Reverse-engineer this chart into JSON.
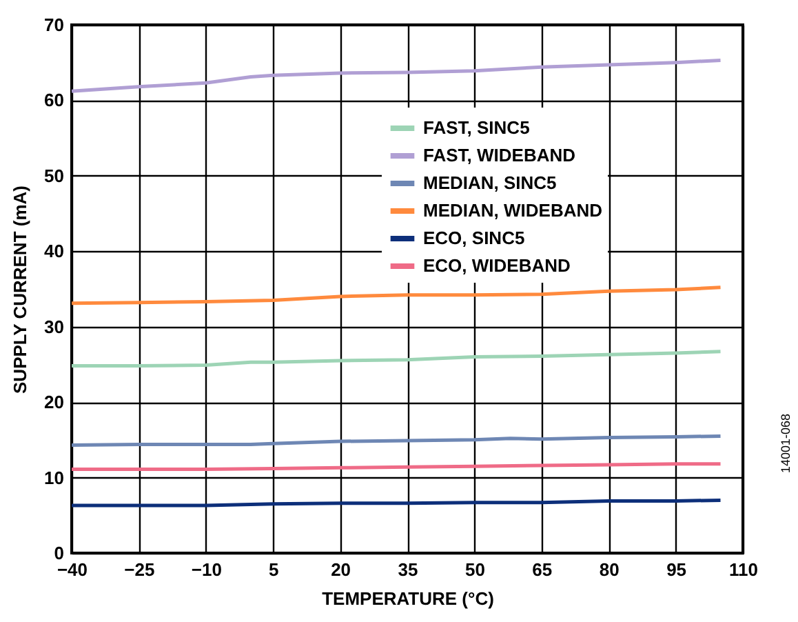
{
  "chart_data": {
    "type": "line",
    "xlabel": "TEMPERATURE (°C)",
    "ylabel": "SUPPLY CURRENT (mA)",
    "xlim": [
      -40,
      110
    ],
    "xticks": [
      -40,
      -25,
      -10,
      5,
      20,
      35,
      50,
      65,
      80,
      95,
      110
    ],
    "ylim": [
      0,
      70
    ],
    "yticks": [
      0,
      10,
      20,
      30,
      40,
      50,
      60,
      70
    ],
    "grid": true,
    "legend": "top right",
    "line_style": "solid",
    "marker": "none",
    "annotations": [
      "14001-068"
    ],
    "series": [
      {
        "name": "FAST, SINC5",
        "color": "#9dd4b5",
        "x": [
          -40,
          -25,
          -10,
          0,
          5,
          20,
          35,
          50,
          65,
          80,
          95,
          105
        ],
        "values": [
          24.8,
          24.8,
          24.9,
          25.3,
          25.3,
          25.5,
          25.6,
          26.0,
          26.1,
          26.3,
          26.5,
          26.7
        ]
      },
      {
        "name": "FAST, WIDEBAND",
        "color": "#b09fd4",
        "x": [
          -40,
          -25,
          -10,
          0,
          5,
          20,
          35,
          50,
          65,
          80,
          95,
          105
        ],
        "values": [
          61.2,
          61.8,
          62.3,
          63.1,
          63.3,
          63.6,
          63.7,
          63.9,
          64.4,
          64.7,
          65.0,
          65.3
        ]
      },
      {
        "name": "MEDIAN, SINC5",
        "color": "#6e87b4",
        "x": [
          -40,
          -25,
          -10,
          0,
          5,
          20,
          35,
          50,
          58,
          65,
          80,
          95,
          105
        ],
        "values": [
          14.3,
          14.4,
          14.4,
          14.4,
          14.5,
          14.8,
          14.9,
          15.0,
          15.2,
          15.1,
          15.3,
          15.4,
          15.5
        ]
      },
      {
        "name": "MEDIAN, WIDEBAND",
        "color": "#ff8a3d",
        "x": [
          -40,
          -25,
          -10,
          5,
          20,
          35,
          50,
          65,
          80,
          95,
          105
        ],
        "values": [
          33.1,
          33.2,
          33.3,
          33.5,
          34.0,
          34.2,
          34.2,
          34.3,
          34.7,
          34.9,
          35.2
        ]
      },
      {
        "name": "ECO, SINC5",
        "color": "#0d2f7a",
        "x": [
          -40,
          -25,
          -10,
          5,
          20,
          35,
          50,
          65,
          80,
          95,
          105
        ],
        "values": [
          6.3,
          6.3,
          6.3,
          6.5,
          6.6,
          6.6,
          6.7,
          6.7,
          6.9,
          6.9,
          7.0
        ]
      },
      {
        "name": "ECO, WIDEBAND",
        "color": "#ef6b87",
        "x": [
          -40,
          -25,
          -10,
          5,
          20,
          35,
          50,
          65,
          80,
          95,
          105
        ],
        "values": [
          11.1,
          11.1,
          11.1,
          11.2,
          11.3,
          11.4,
          11.5,
          11.6,
          11.7,
          11.8,
          11.8
        ]
      }
    ]
  }
}
